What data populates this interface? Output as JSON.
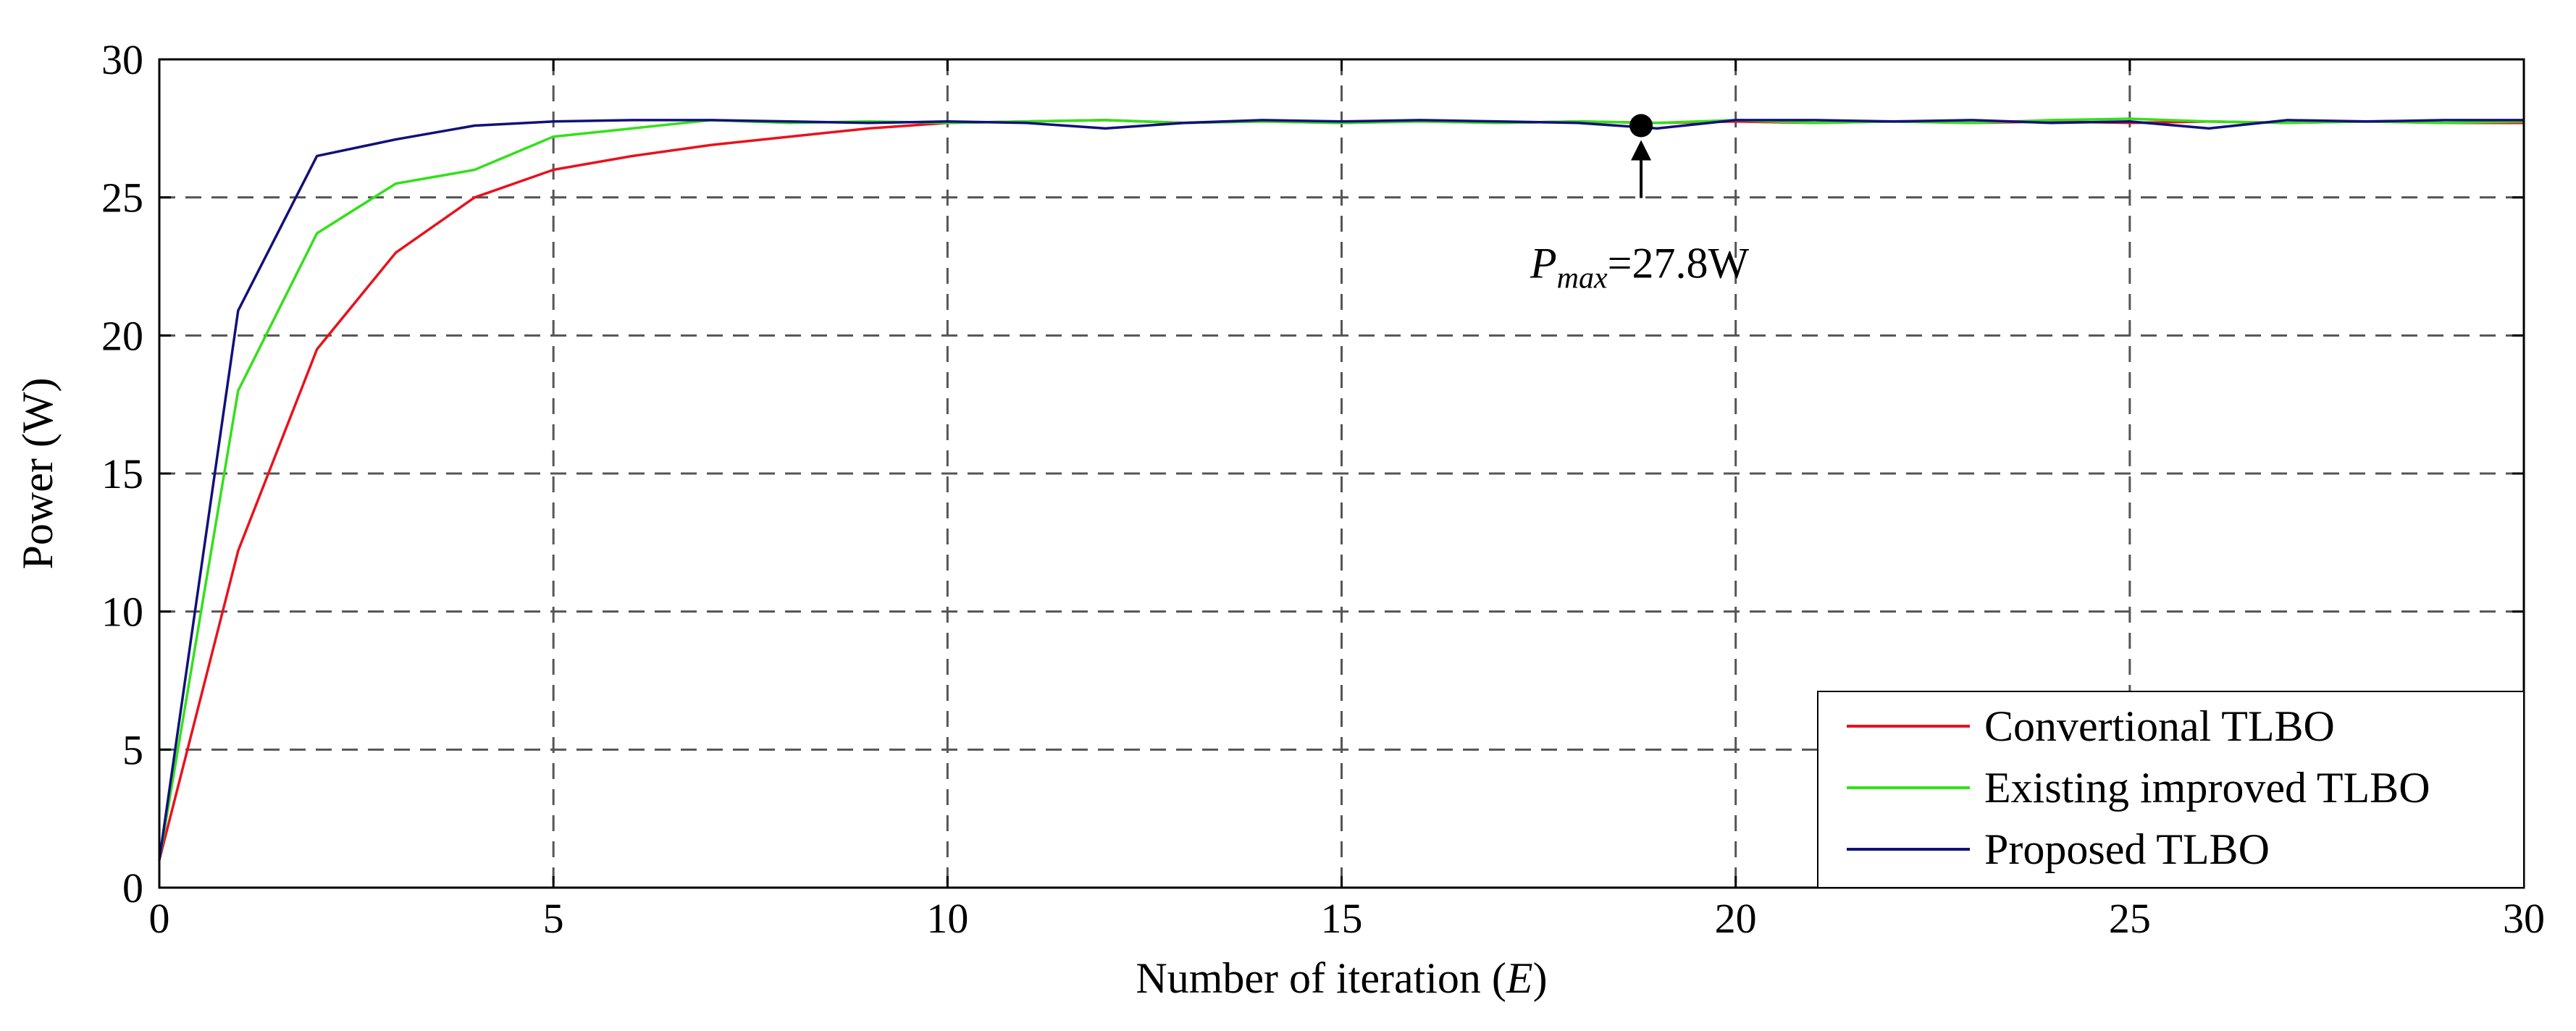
{
  "chart_data": {
    "type": "line",
    "title": "",
    "xlabel_main": "Number of  iteration (",
    "xlabel_var": "E",
    "xlabel_close": ")",
    "ylabel": "Power (W)",
    "xlim": [
      0,
      30
    ],
    "ylim": [
      0,
      30
    ],
    "xticks": [
      0,
      5,
      10,
      15,
      20,
      25,
      30
    ],
    "yticks": [
      0,
      5,
      10,
      15,
      20,
      25,
      30
    ],
    "xtick_labels": [
      "0",
      "5",
      "10",
      "15",
      "20",
      "25",
      "30"
    ],
    "ytick_labels": [
      "0",
      "5",
      "10",
      "15",
      "20",
      "25",
      "30"
    ],
    "grid": true,
    "grid_style": "dashed",
    "legend_position": "bottom-right",
    "x": [
      0,
      1,
      2,
      3,
      4,
      5,
      6,
      7,
      8,
      9,
      10,
      11,
      12,
      13,
      14,
      15,
      16,
      17,
      18,
      19,
      20,
      21,
      22,
      23,
      24,
      25,
      26,
      27,
      28,
      29,
      30
    ],
    "series": [
      {
        "name": "Convertional TLBO",
        "color": "#e8121c",
        "values": [
          1.0,
          12.2,
          19.5,
          23.0,
          25.0,
          26.0,
          26.5,
          26.9,
          27.2,
          27.5,
          27.7,
          27.75,
          27.8,
          27.7,
          27.75,
          27.7,
          27.75,
          27.7,
          27.75,
          27.7,
          27.75,
          27.7,
          27.75,
          27.7,
          27.75,
          27.7,
          27.75,
          27.7,
          27.75,
          27.7,
          27.7
        ]
      },
      {
        "name": "Existing improved TLBO",
        "color": "#33e01a",
        "values": [
          1.0,
          18.0,
          23.7,
          25.5,
          26.0,
          27.2,
          27.5,
          27.8,
          27.7,
          27.75,
          27.7,
          27.75,
          27.8,
          27.7,
          27.75,
          27.7,
          27.75,
          27.7,
          27.75,
          27.7,
          27.8,
          27.7,
          27.75,
          27.7,
          27.8,
          27.85,
          27.75,
          27.7,
          27.75,
          27.7,
          27.75
        ]
      },
      {
        "name": "Proposed TLBO",
        "color": "#11117a",
        "values": [
          1.0,
          20.9,
          26.5,
          27.1,
          27.6,
          27.75,
          27.8,
          27.8,
          27.75,
          27.7,
          27.75,
          27.7,
          27.5,
          27.7,
          27.8,
          27.75,
          27.8,
          27.75,
          27.7,
          27.5,
          27.8,
          27.8,
          27.75,
          27.8,
          27.7,
          27.75,
          27.5,
          27.8,
          27.75,
          27.8,
          27.8
        ]
      }
    ],
    "annotation": {
      "label_symbol": "P",
      "label_subscript": "max",
      "label_value": "=27.8W",
      "point_x": 18.8,
      "point_y": 27.6
    }
  }
}
